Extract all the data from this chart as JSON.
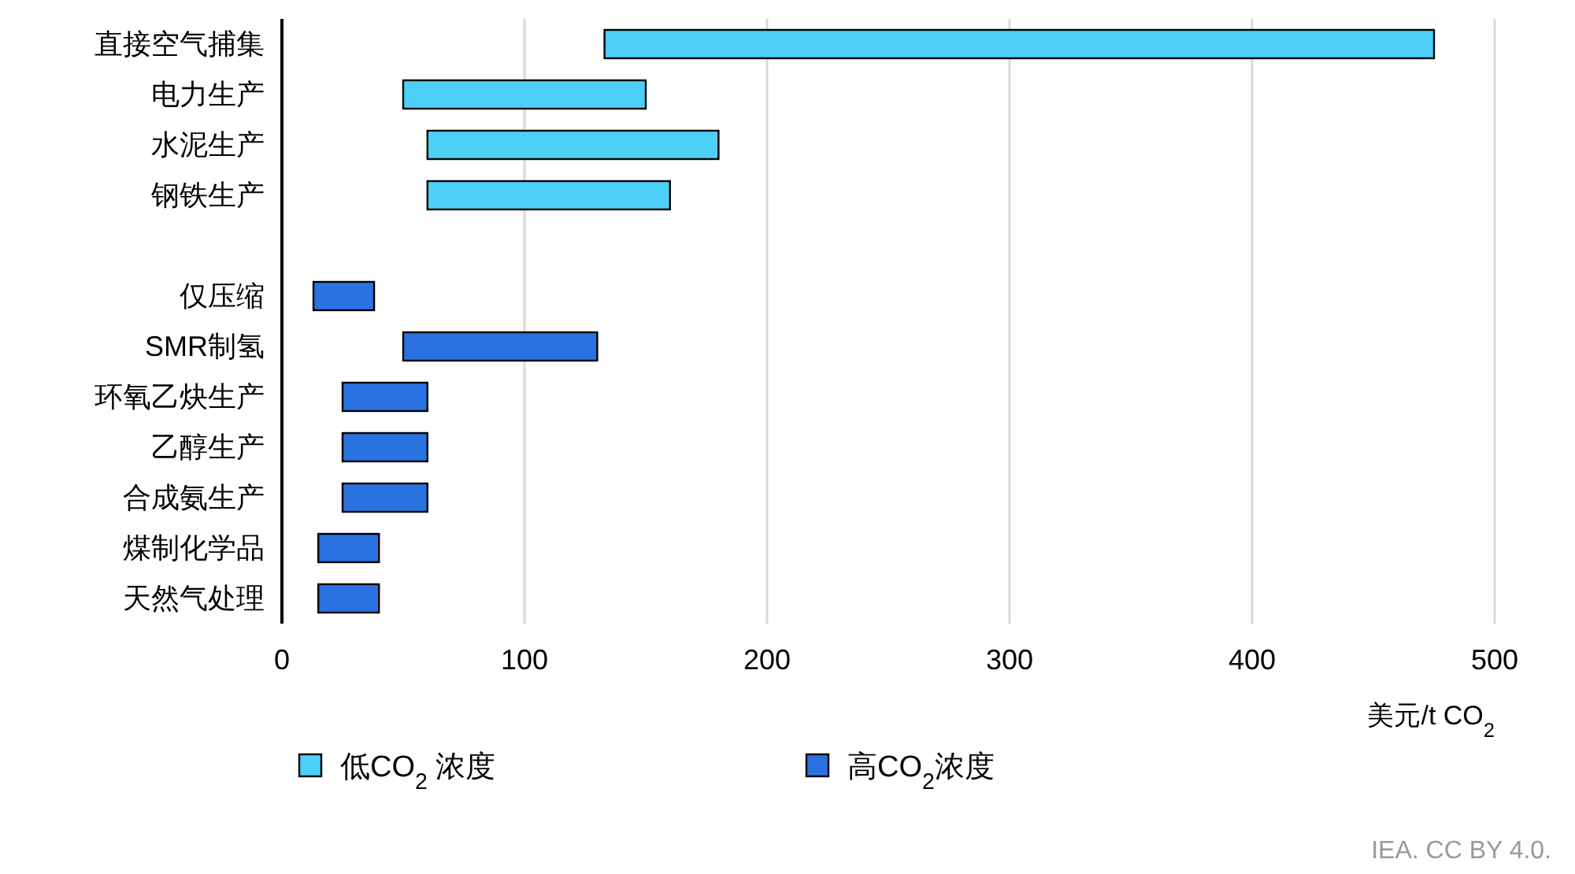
{
  "chart_data": {
    "type": "bar",
    "orientation": "horizontal",
    "xlabel": "美元/t CO$_{2}$",
    "categories": [
      "直接空气捕集",
      "电力生产",
      "水泥生产",
      "钢铁生产",
      null,
      "仅压缩",
      "SMR制氢",
      "环氧乙炔生产",
      "乙醇生产",
      "合成氨生产",
      "煤制化学品",
      "天然气处理"
    ],
    "series": [
      {
        "name": "低CO$_{2}$ 浓度",
        "color": "#4dd0f7",
        "base": [
          133,
          50,
          60,
          60,
          null,
          null,
          null,
          null,
          null,
          null,
          null,
          null
        ],
        "values": [
          342,
          100,
          120,
          100,
          null,
          null,
          null,
          null,
          null,
          null,
          null,
          null
        ]
      },
      {
        "name": "高CO$_{2}$浓度",
        "color": "#2a72e0",
        "base": [
          null,
          null,
          null,
          null,
          null,
          13,
          50,
          25,
          25,
          25,
          15,
          15
        ],
        "values": [
          null,
          null,
          null,
          null,
          null,
          25,
          80,
          35,
          35,
          35,
          25,
          25
        ]
      }
    ],
    "xlim": [
      0,
      500
    ],
    "xticks": [
      0,
      100,
      200,
      300,
      400,
      500
    ],
    "grid": "x",
    "legend": "bottom",
    "annotations": [
      "IEA. CC BY 4.0."
    ]
  }
}
